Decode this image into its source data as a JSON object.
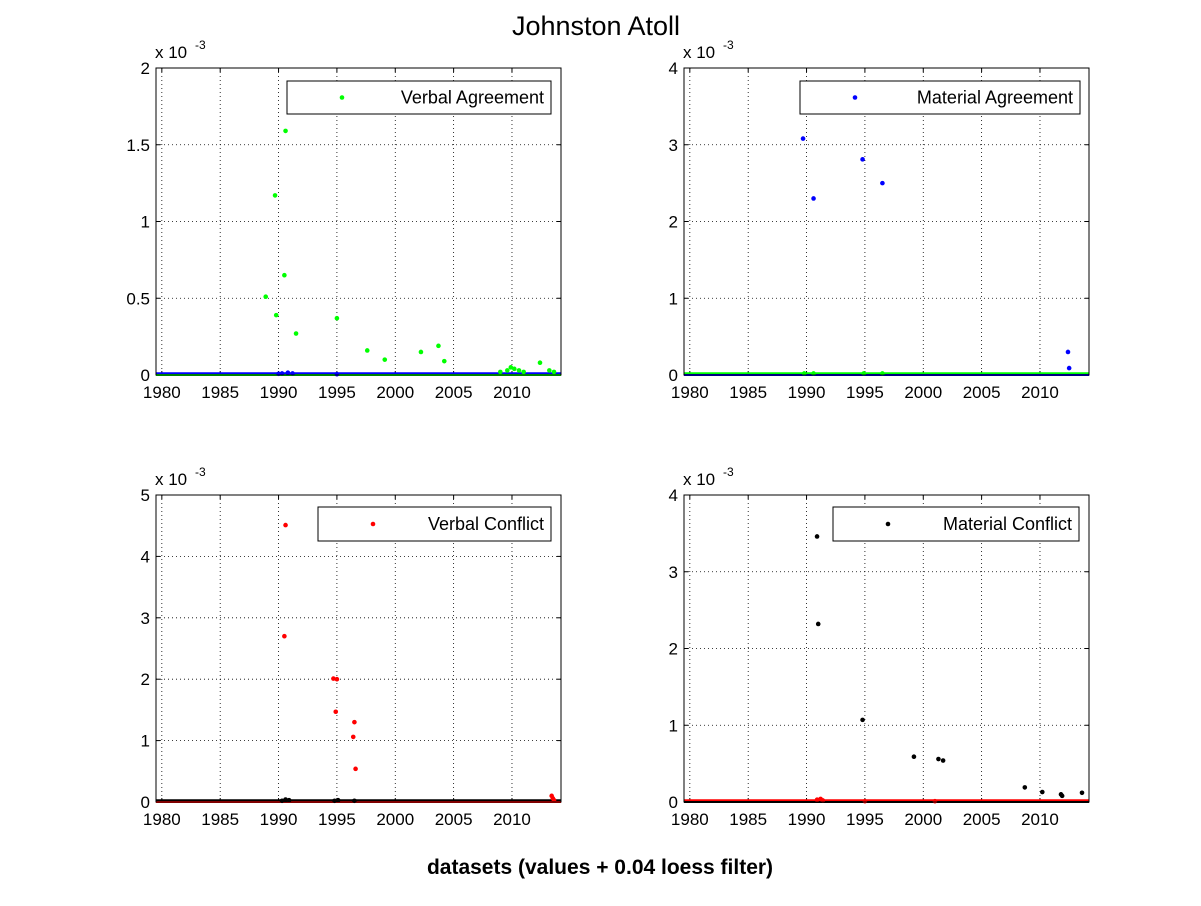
{
  "figure": {
    "title": "Johnston Atoll",
    "xlabel": "datasets (values + 0.04 loess filter)"
  },
  "chart_data": [
    {
      "type": "scatter",
      "name": "Verbal Agreement",
      "multiplier": "x 10",
      "multiplier_exp": "-3",
      "xlim": [
        1979.5,
        2014.2
      ],
      "ylim": [
        0,
        2
      ],
      "xticks": [
        1980,
        1985,
        1990,
        1995,
        2000,
        2005,
        2010
      ],
      "yticks": [
        0,
        0.5,
        1,
        1.5,
        2
      ],
      "ytick_labels": [
        "0",
        "0.5",
        "1",
        "1.5",
        "2"
      ],
      "grid": true,
      "legend": {
        "entry": "Verbal Agreement",
        "color": "#00ff00",
        "placement": "top-right"
      },
      "series": [
        {
          "name": "Verbal Agreement",
          "color": "#00ff00",
          "points": [
            [
              1988.9,
              0.51
            ],
            [
              1989.7,
              1.17
            ],
            [
              1989.8,
              0.39
            ],
            [
              1990.5,
              0.65
            ],
            [
              1990.6,
              1.59
            ],
            [
              1991.5,
              0.27
            ],
            [
              1995.0,
              0.37
            ],
            [
              1997.6,
              0.16
            ],
            [
              1999.1,
              0.1
            ],
            [
              2002.2,
              0.15
            ],
            [
              2003.7,
              0.19
            ],
            [
              2004.2,
              0.09
            ],
            [
              2009.0,
              0.02
            ],
            [
              2009.6,
              0.03
            ],
            [
              2009.9,
              0.05
            ],
            [
              2010.2,
              0.04
            ],
            [
              2010.6,
              0.03
            ],
            [
              2011.0,
              0.02
            ],
            [
              2012.4,
              0.08
            ],
            [
              2013.2,
              0.03
            ],
            [
              2013.6,
              0.02
            ]
          ]
        },
        {
          "name": "",
          "color": "#0000ff",
          "points": [
            [
              1990.0,
              0.008
            ],
            [
              1990.3,
              0.01
            ],
            [
              1990.8,
              0.015
            ],
            [
              1991.2,
              0.01
            ],
            [
              1995.0,
              0.005
            ]
          ]
        }
      ]
    },
    {
      "type": "scatter",
      "name": "Material Agreement",
      "multiplier": "x 10",
      "multiplier_exp": "-3",
      "xlim": [
        1979.5,
        2014.2
      ],
      "ylim": [
        0,
        4
      ],
      "xticks": [
        1980,
        1985,
        1990,
        1995,
        2000,
        2005,
        2010
      ],
      "yticks": [
        0,
        1,
        2,
        3,
        4
      ],
      "ytick_labels": [
        "0",
        "1",
        "2",
        "3",
        "4"
      ],
      "grid": true,
      "legend": {
        "entry": "Material Agreement",
        "color": "#0000ff",
        "placement": "top-right"
      },
      "series": [
        {
          "name": "Material Agreement",
          "color": "#0000ff",
          "points": [
            [
              1989.7,
              3.08
            ],
            [
              1990.6,
              2.3
            ],
            [
              1994.8,
              2.81
            ],
            [
              1996.5,
              2.5
            ],
            [
              2012.4,
              0.3
            ],
            [
              2012.5,
              0.09
            ]
          ]
        },
        {
          "name": "",
          "color": "#00ff00",
          "points": [
            [
              1989.8,
              0.02
            ],
            [
              1990.6,
              0.02
            ],
            [
              1994.9,
              0.02
            ],
            [
              1996.5,
              0.02
            ]
          ]
        }
      ]
    },
    {
      "type": "scatter",
      "name": "Verbal Conflict",
      "multiplier": "x 10",
      "multiplier_exp": "-3",
      "xlim": [
        1979.5,
        2014.2
      ],
      "ylim": [
        0,
        5
      ],
      "xticks": [
        1980,
        1985,
        1990,
        1995,
        2000,
        2005,
        2010
      ],
      "yticks": [
        0,
        1,
        2,
        3,
        4,
        5
      ],
      "ytick_labels": [
        "0",
        "1",
        "2",
        "3",
        "4",
        "5"
      ],
      "grid": true,
      "legend": {
        "entry": "Verbal Conflict",
        "color": "#ff0000",
        "placement": "top-right"
      },
      "series": [
        {
          "name": "Verbal Conflict",
          "color": "#ff0000",
          "points": [
            [
              1990.5,
              2.7
            ],
            [
              1990.6,
              4.51
            ],
            [
              1994.7,
              2.01
            ],
            [
              1994.9,
              1.47
            ],
            [
              1995.0,
              2.0
            ],
            [
              1996.4,
              1.06
            ],
            [
              1996.5,
              1.3
            ],
            [
              1996.6,
              0.54
            ],
            [
              2013.4,
              0.1
            ],
            [
              2013.5,
              0.06
            ],
            [
              2013.6,
              0.03
            ]
          ]
        },
        {
          "name": "",
          "color": "#000000",
          "points": [
            [
              1990.3,
              0.02
            ],
            [
              1990.6,
              0.04
            ],
            [
              1990.9,
              0.03
            ],
            [
              1994.8,
              0.02
            ],
            [
              1995.1,
              0.03
            ],
            [
              1996.5,
              0.02
            ]
          ]
        }
      ]
    },
    {
      "type": "scatter",
      "name": "Material Conflict",
      "multiplier": "x 10",
      "multiplier_exp": "-3",
      "xlim": [
        1979.5,
        2014.2
      ],
      "ylim": [
        0,
        4
      ],
      "xticks": [
        1980,
        1985,
        1990,
        1995,
        2000,
        2005,
        2010
      ],
      "yticks": [
        0,
        1,
        2,
        3,
        4
      ],
      "ytick_labels": [
        "0",
        "1",
        "2",
        "3",
        "4"
      ],
      "grid": true,
      "legend": {
        "entry": "Material Conflict",
        "color": "#000000",
        "placement": "top-right"
      },
      "series": [
        {
          "name": "Material Conflict",
          "color": "#000000",
          "points": [
            [
              1990.9,
              3.46
            ],
            [
              1991.0,
              2.32
            ],
            [
              1994.8,
              1.07
            ],
            [
              1999.2,
              0.59
            ],
            [
              2001.3,
              0.56
            ],
            [
              2001.7,
              0.54
            ],
            [
              2008.7,
              0.19
            ],
            [
              2010.2,
              0.13
            ],
            [
              2011.8,
              0.1
            ],
            [
              2011.9,
              0.08
            ],
            [
              2013.6,
              0.12
            ]
          ]
        },
        {
          "name": "",
          "color": "#ff0000",
          "points": [
            [
              1990.9,
              0.03
            ],
            [
              1991.2,
              0.04
            ],
            [
              1991.4,
              0.02
            ],
            [
              1995.0,
              0.01
            ],
            [
              2001.0,
              0.01
            ]
          ]
        }
      ]
    }
  ]
}
